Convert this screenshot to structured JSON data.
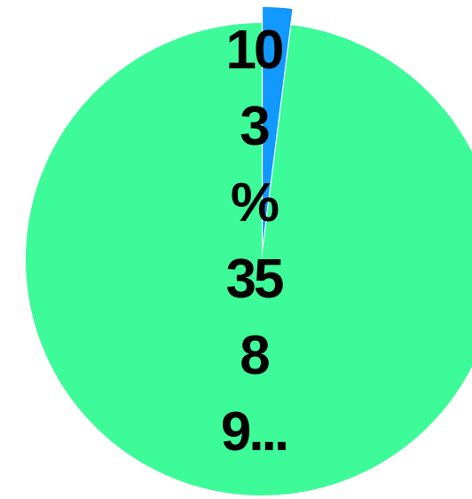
{
  "chart_data": {
    "type": "pie",
    "slices": [
      {
        "label": "",
        "value": 2.0,
        "color": "#1199ff"
      },
      {
        "label": "",
        "value": 98.0,
        "color": "#3dfb98"
      }
    ],
    "title": "",
    "data_label": {
      "lines": [
        "10",
        "3",
        "%",
        "35",
        "8",
        "9..."
      ]
    }
  }
}
